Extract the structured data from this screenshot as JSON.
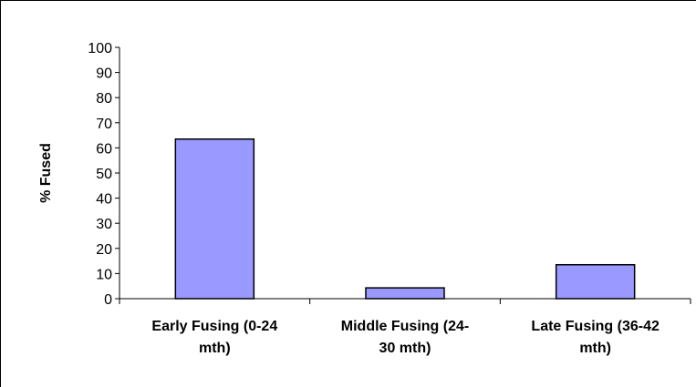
{
  "chart_data": {
    "type": "bar",
    "categories": [
      [
        "Early Fusing (0-24",
        "mth)"
      ],
      [
        "Middle Fusing (24-",
        "30 mth)"
      ],
      [
        "Late Fusing (36-42",
        "mth)"
      ]
    ],
    "values": [
      63.5,
      4.3,
      13.5
    ],
    "xlabel": "",
    "ylabel": "% Fused",
    "ylim": [
      0,
      100
    ],
    "yticks": [
      "0",
      "10",
      "20",
      "30",
      "40",
      "50",
      "60",
      "70",
      "80",
      "90",
      "100"
    ],
    "grid": false,
    "bar_color": "#9999ff",
    "bar_border_color": "#000000"
  }
}
